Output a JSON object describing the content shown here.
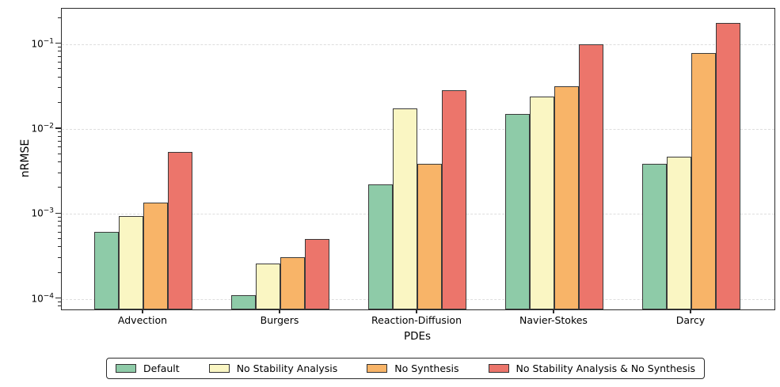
{
  "chart_data": {
    "type": "bar",
    "title": "",
    "xlabel": "PDEs",
    "ylabel": "nRMSE",
    "yscale": "log",
    "ylim": [
      7.5e-05,
      0.26
    ],
    "ytick_exponents": [
      -1,
      -2,
      -3,
      -4
    ],
    "grid": "horizontal-dashed-on-major-ticks",
    "legend_position": "bottom-outside-horizontal",
    "categories": [
      "Advection",
      "Burgers",
      "Reaction-Diffusion",
      "Navier-Stokes",
      "Darcy"
    ],
    "series": [
      {
        "name": "Default",
        "color": "#8ecba8",
        "values": [
          0.00062,
          0.00011,
          0.0022,
          0.015,
          0.0039
        ]
      },
      {
        "name": "No Stability Analysis",
        "color": "#faf6c3",
        "values": [
          0.00095,
          0.00026,
          0.0173,
          0.024,
          0.0047
        ]
      },
      {
        "name": "No Synthesis",
        "color": "#f8b468",
        "values": [
          0.00135,
          0.00031,
          0.0039,
          0.0315,
          0.078
        ]
      },
      {
        "name": "No Stability Analysis & No Synthesis",
        "color": "#ec756b",
        "values": [
          0.0053,
          0.00051,
          0.0285,
          0.1,
          0.178
        ]
      }
    ],
    "bar_edge_color": "#3a3a3a",
    "gridline_color": "#dedede"
  }
}
